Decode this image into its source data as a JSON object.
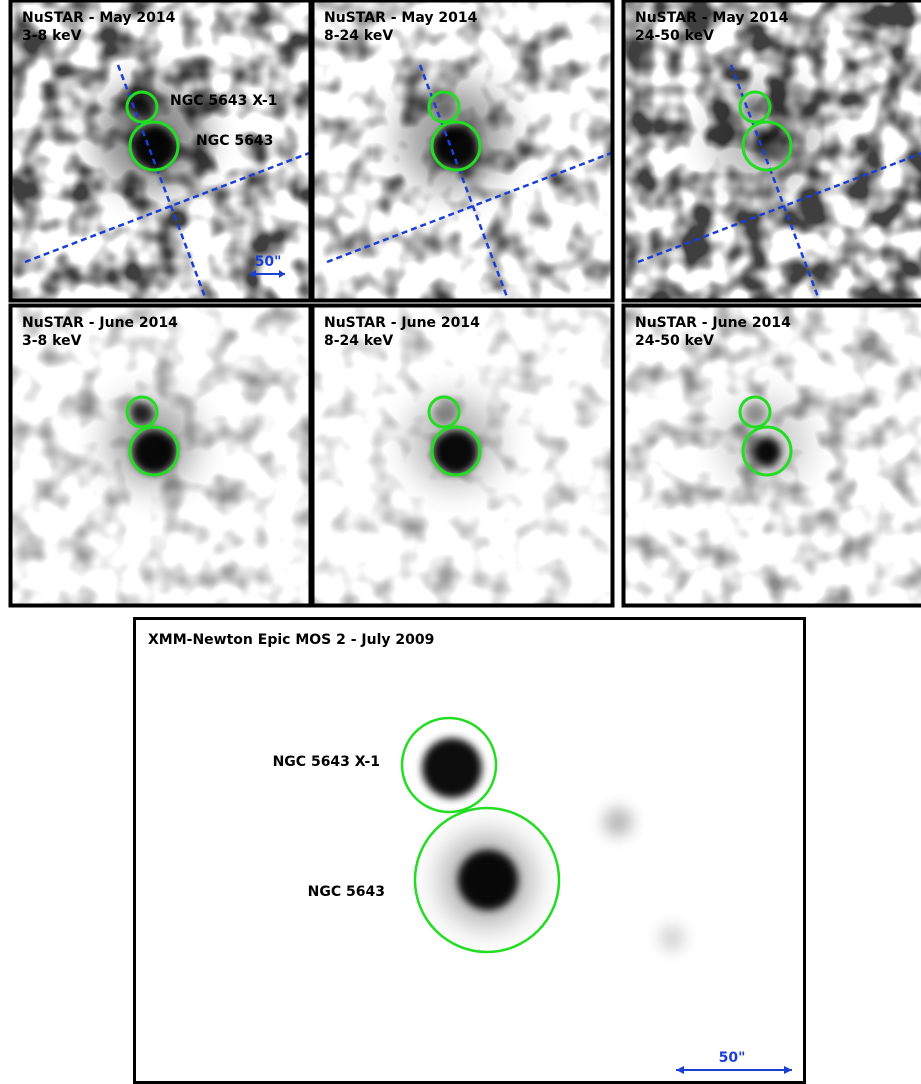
{
  "panels": [
    {
      "title": "NuSTAR - May 2014",
      "band": "3-8 keV",
      "x1_label": "NGC 5643 X-1",
      "nucleus_label": "NGC 5643",
      "scale_label": "50\""
    },
    {
      "title": "NuSTAR - May 2014",
      "band": "8-24 keV"
    },
    {
      "title": "NuSTAR - May 2014",
      "band": "24-50 keV"
    },
    {
      "title": "NuSTAR - June 2014",
      "band": "3-8 keV"
    },
    {
      "title": "NuSTAR - June 2014",
      "band": "8-24 keV"
    },
    {
      "title": "NuSTAR - June 2014",
      "band": "24-50 keV"
    }
  ],
  "bottom": {
    "title": "XMM-Newton Epic MOS 2 - July 2009",
    "x1_label": "NGC 5643 X-1",
    "nucleus_label": "NGC 5643",
    "scale_label": "50\""
  }
}
